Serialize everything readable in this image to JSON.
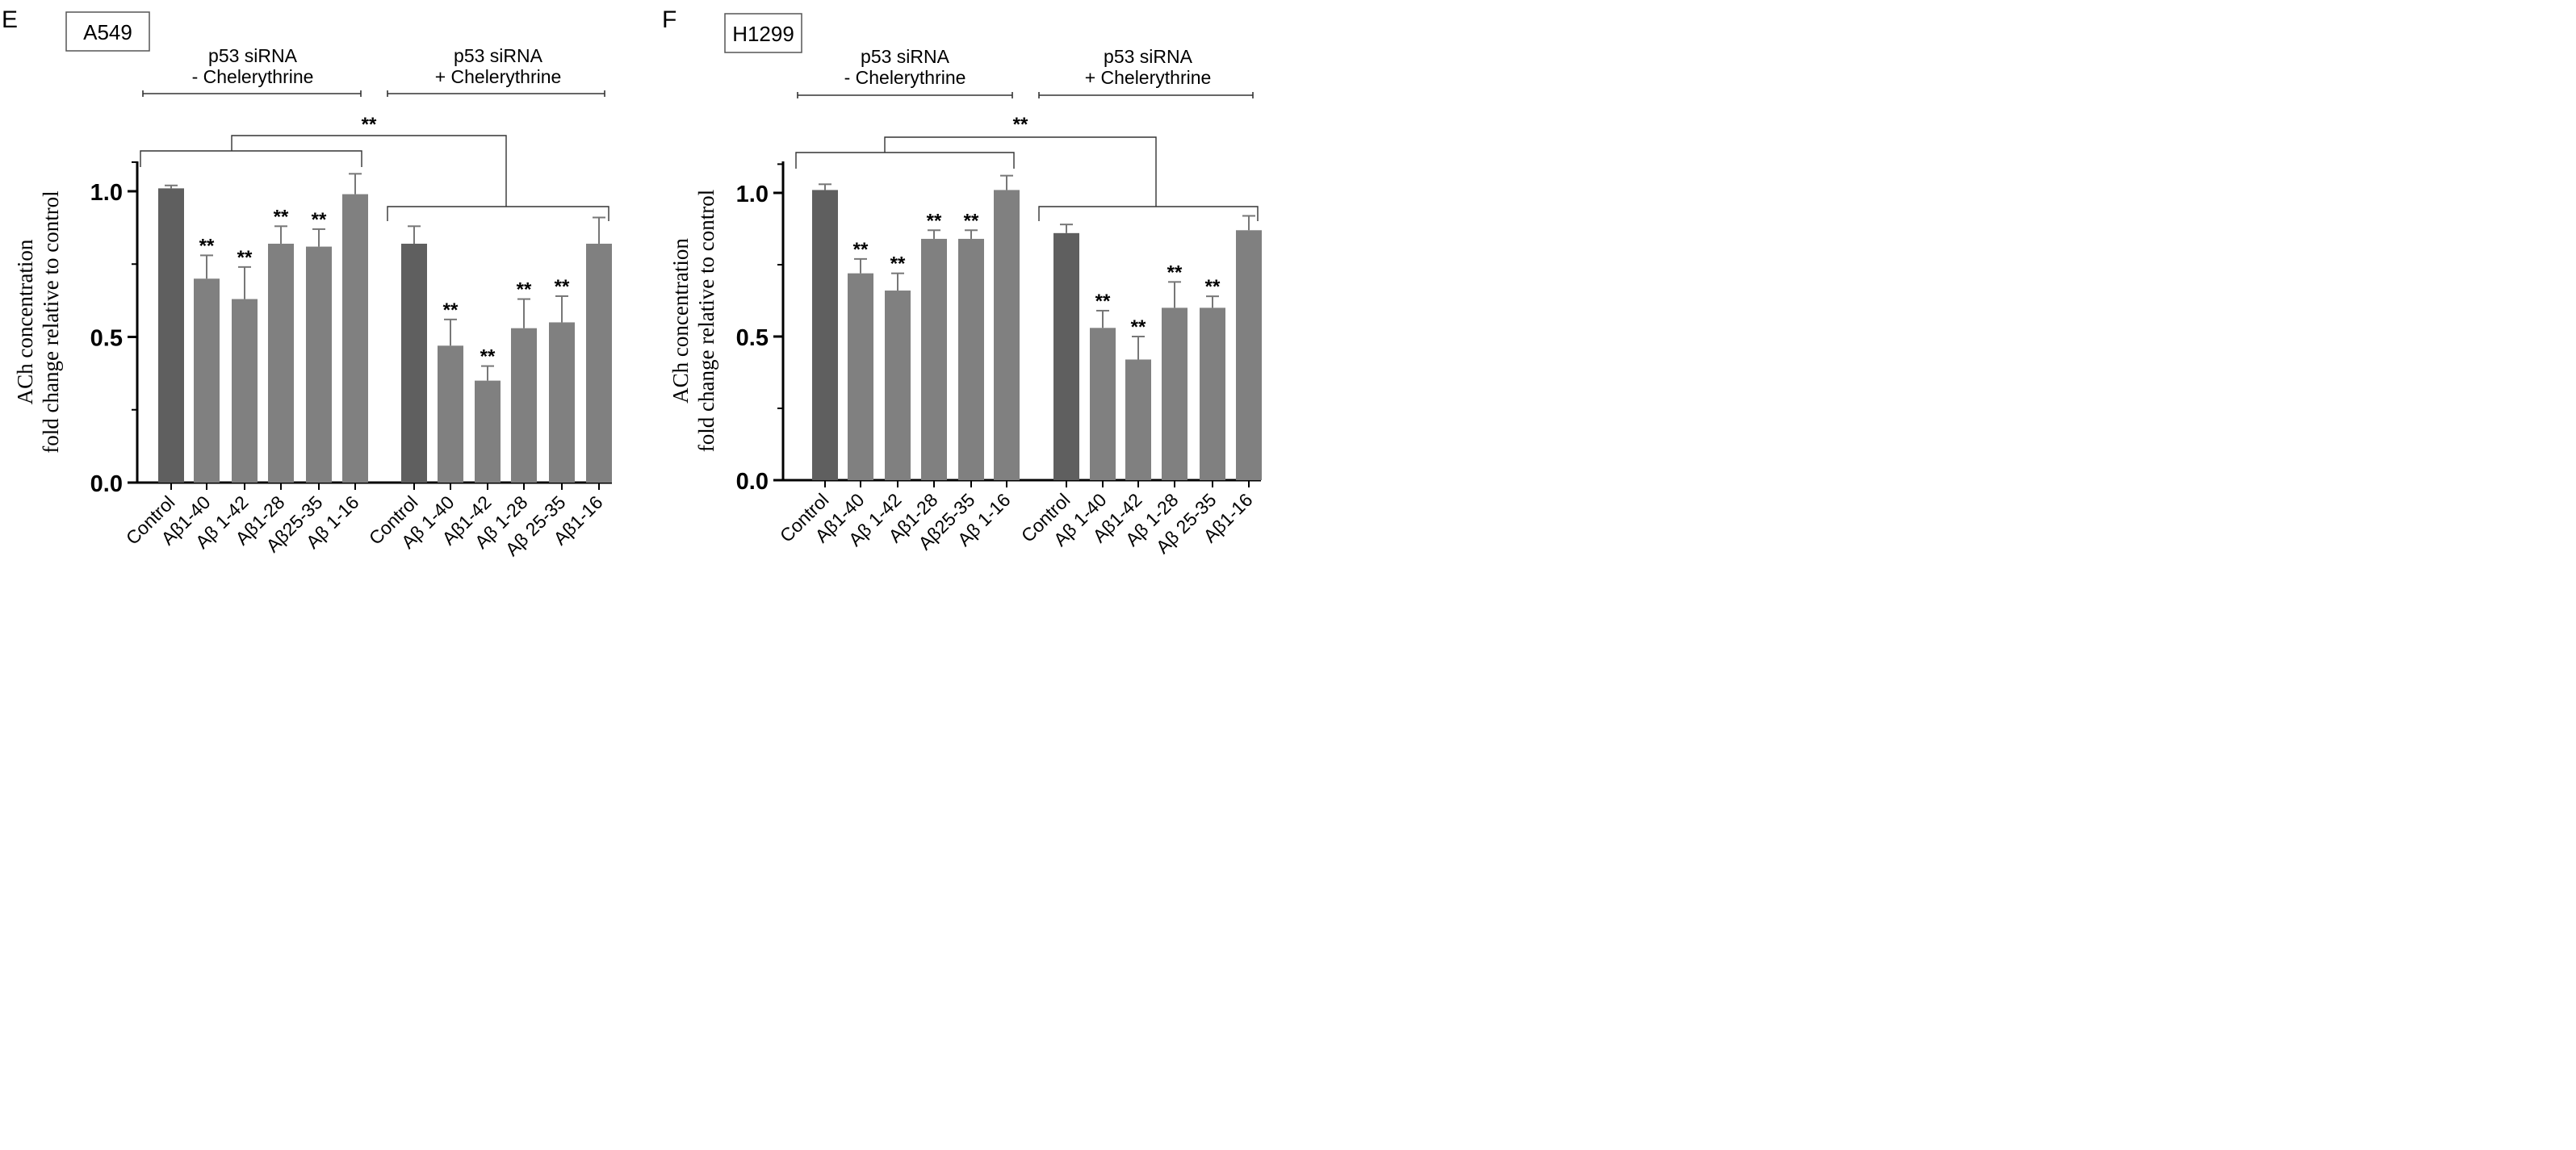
{
  "chart_data": [
    {
      "type": "bar",
      "panel_letter": "E",
      "cell_line": "A549",
      "ylabel_line1": "ACh concentration",
      "ylabel_line2": "fold change relative to control",
      "ylim": [
        0,
        1.1
      ],
      "yticks": [
        "0.0",
        "0.5",
        "1.0"
      ],
      "ytick_values": [
        0,
        0.5,
        1.0
      ],
      "group_labels": [
        {
          "line1": "p53 siRNA",
          "line2": "- Chelerythrine"
        },
        {
          "line1": "p53 siRNA",
          "line2": "+ Chelerythrine"
        }
      ],
      "between_group_sig": "**",
      "categories": [
        "Control",
        "Aβ1-40",
        "Aβ 1-42",
        "Aβ1-28",
        "Aβ25-35",
        "Aβ 1-16",
        "Control",
        "Aβ 1-40",
        "Aβ1-42",
        "Aβ 1-28",
        "Aβ 25-35",
        "Aβ1-16"
      ],
      "values": [
        1.01,
        0.7,
        0.63,
        0.82,
        0.81,
        0.99,
        0.82,
        0.47,
        0.35,
        0.53,
        0.55,
        0.82
      ],
      "errors": [
        0.01,
        0.08,
        0.11,
        0.06,
        0.06,
        0.07,
        0.06,
        0.09,
        0.05,
        0.1,
        0.09,
        0.09
      ],
      "significance": [
        "",
        "**",
        "**",
        "**",
        "**",
        "",
        "",
        "**",
        "**",
        "**",
        "**",
        ""
      ],
      "bar_colors": [
        "#5f5f5f",
        "#808080",
        "#808080",
        "#808080",
        "#808080",
        "#808080",
        "#5f5f5f",
        "#808080",
        "#808080",
        "#808080",
        "#808080",
        "#808080"
      ]
    },
    {
      "type": "bar",
      "panel_letter": "F",
      "cell_line": "H1299",
      "ylabel_line1": "ACh concentration",
      "ylabel_line2": "fold change relative to control",
      "ylim": [
        0,
        1.1
      ],
      "yticks": [
        "0.0",
        "0.5",
        "1.0"
      ],
      "ytick_values": [
        0,
        0.5,
        1.0
      ],
      "group_labels": [
        {
          "line1": "p53 siRNA",
          "line2": "- Chelerythrine"
        },
        {
          "line1": "p53 siRNA",
          "line2": "+ Chelerythrine"
        }
      ],
      "between_group_sig": "**",
      "categories": [
        "Control",
        "Aβ1-40",
        "Aβ 1-42",
        "Aβ1-28",
        "Aβ25-35",
        "Aβ 1-16",
        "Control",
        "Aβ 1-40",
        "Aβ1-42",
        "Aβ 1-28",
        "Aβ 25-35",
        "Aβ1-16"
      ],
      "values": [
        1.01,
        0.72,
        0.66,
        0.84,
        0.84,
        1.01,
        0.86,
        0.53,
        0.42,
        0.6,
        0.6,
        0.87
      ],
      "errors": [
        0.02,
        0.05,
        0.06,
        0.03,
        0.03,
        0.05,
        0.03,
        0.06,
        0.08,
        0.09,
        0.04,
        0.05
      ],
      "significance": [
        "",
        "**",
        "**",
        "**",
        "**",
        "",
        "",
        "**",
        "**",
        "**",
        "**",
        ""
      ],
      "bar_colors": [
        "#5f5f5f",
        "#808080",
        "#808080",
        "#808080",
        "#808080",
        "#808080",
        "#5f5f5f",
        "#808080",
        "#808080",
        "#808080",
        "#808080",
        "#808080"
      ]
    }
  ]
}
